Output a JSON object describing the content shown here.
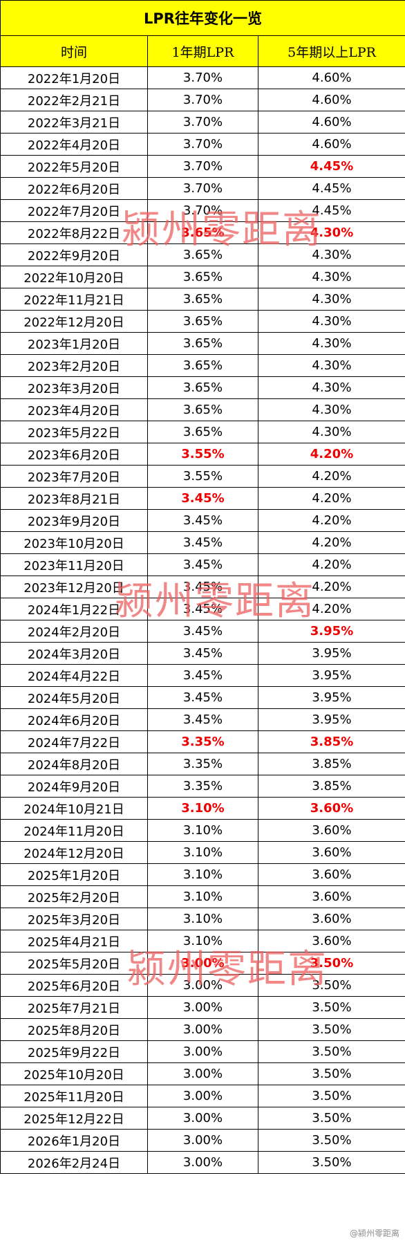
{
  "title": "LPR往年变化一览",
  "headers": [
    "时间",
    "1年期LPR",
    "5年期以上LPR"
  ],
  "rows": [
    {
      "date": "2022年1月20日",
      "lpr1y": "3.70%",
      "lpr5y": "4.60%",
      "changed1y": false,
      "changed5y": false
    },
    {
      "date": "2022年2月21日",
      "lpr1y": "3.70%",
      "lpr5y": "4.60%",
      "changed1y": false,
      "changed5y": false
    },
    {
      "date": "2022年3月21日",
      "lpr1y": "3.70%",
      "lpr5y": "4.60%",
      "changed1y": false,
      "changed5y": false
    },
    {
      "date": "2022年4月20日",
      "lpr1y": "3.70%",
      "lpr5y": "4.60%",
      "changed1y": false,
      "changed5y": false
    },
    {
      "date": "2022年5月20日",
      "lpr1y": "3.70%",
      "lpr5y": "4.45%",
      "changed1y": false,
      "changed5y": true
    },
    {
      "date": "2022年6月20日",
      "lpr1y": "3.70%",
      "lpr5y": "4.45%",
      "changed1y": false,
      "changed5y": false
    },
    {
      "date": "2022年7月20日",
      "lpr1y": "3.70%",
      "lpr5y": "4.45%",
      "changed1y": false,
      "changed5y": false
    },
    {
      "date": "2022年8月22日",
      "lpr1y": "3.65%",
      "lpr5y": "4.30%",
      "changed1y": true,
      "changed5y": true
    },
    {
      "date": "2022年9月20日",
      "lpr1y": "3.65%",
      "lpr5y": "4.30%",
      "changed1y": false,
      "changed5y": false
    },
    {
      "date": "2022年10月20日",
      "lpr1y": "3.65%",
      "lpr5y": "4.30%",
      "changed1y": false,
      "changed5y": false
    },
    {
      "date": "2022年11月21日",
      "lpr1y": "3.65%",
      "lpr5y": "4.30%",
      "changed1y": false,
      "changed5y": false
    },
    {
      "date": "2022年12月20日",
      "lpr1y": "3.65%",
      "lpr5y": "4.30%",
      "changed1y": false,
      "changed5y": false
    },
    {
      "date": "2023年1月20日",
      "lpr1y": "3.65%",
      "lpr5y": "4.30%",
      "changed1y": false,
      "changed5y": false
    },
    {
      "date": "2023年2月20日",
      "lpr1y": "3.65%",
      "lpr5y": "4.30%",
      "changed1y": false,
      "changed5y": false
    },
    {
      "date": "2023年3月20日",
      "lpr1y": "3.65%",
      "lpr5y": "4.30%",
      "changed1y": false,
      "changed5y": false
    },
    {
      "date": "2023年4月20日",
      "lpr1y": "3.65%",
      "lpr5y": "4.30%",
      "changed1y": false,
      "changed5y": false
    },
    {
      "date": "2023年5月22日",
      "lpr1y": "3.65%",
      "lpr5y": "4.30%",
      "changed1y": false,
      "changed5y": false
    },
    {
      "date": "2023年6月20日",
      "lpr1y": "3.55%",
      "lpr5y": "4.20%",
      "changed1y": true,
      "changed5y": true
    },
    {
      "date": "2023年7月20日",
      "lpr1y": "3.55%",
      "lpr5y": "4.20%",
      "changed1y": false,
      "changed5y": false
    },
    {
      "date": "2023年8月21日",
      "lpr1y": "3.45%",
      "lpr5y": "4.20%",
      "changed1y": true,
      "changed5y": false
    },
    {
      "date": "2023年9月20日",
      "lpr1y": "3.45%",
      "lpr5y": "4.20%",
      "changed1y": false,
      "changed5y": false
    },
    {
      "date": "2023年10月20日",
      "lpr1y": "3.45%",
      "lpr5y": "4.20%",
      "changed1y": false,
      "changed5y": false
    },
    {
      "date": "2023年11月20日",
      "lpr1y": "3.45%",
      "lpr5y": "4.20%",
      "changed1y": false,
      "changed5y": false
    },
    {
      "date": "2023年12月20日",
      "lpr1y": "3.45%",
      "lpr5y": "4.20%",
      "changed1y": false,
      "changed5y": false
    },
    {
      "date": "2024年1月22日",
      "lpr1y": "3.45%",
      "lpr5y": "4.20%",
      "changed1y": false,
      "changed5y": false
    },
    {
      "date": "2024年2月20日",
      "lpr1y": "3.45%",
      "lpr5y": "3.95%",
      "changed1y": false,
      "changed5y": true
    },
    {
      "date": "2024年3月20日",
      "lpr1y": "3.45%",
      "lpr5y": "3.95%",
      "changed1y": false,
      "changed5y": false
    },
    {
      "date": "2024年4月22日",
      "lpr1y": "3.45%",
      "lpr5y": "3.95%",
      "changed1y": false,
      "changed5y": false
    },
    {
      "date": "2024年5月20日",
      "lpr1y": "3.45%",
      "lpr5y": "3.95%",
      "changed1y": false,
      "changed5y": false
    },
    {
      "date": "2024年6月20日",
      "lpr1y": "3.45%",
      "lpr5y": "3.95%",
      "changed1y": false,
      "changed5y": false
    },
    {
      "date": "2024年7月22日",
      "lpr1y": "3.35%",
      "lpr5y": "3.85%",
      "changed1y": true,
      "changed5y": true
    },
    {
      "date": "2024年8月20日",
      "lpr1y": "3.35%",
      "lpr5y": "3.85%",
      "changed1y": false,
      "changed5y": false
    },
    {
      "date": "2024年9月20日",
      "lpr1y": "3.35%",
      "lpr5y": "3.85%",
      "changed1y": false,
      "changed5y": false
    },
    {
      "date": "2024年10月21日",
      "lpr1y": "3.10%",
      "lpr5y": "3.60%",
      "changed1y": true,
      "changed5y": true
    },
    {
      "date": "2024年11月20日",
      "lpr1y": "3.10%",
      "lpr5y": "3.60%",
      "changed1y": false,
      "changed5y": false
    },
    {
      "date": "2024年12月20日",
      "lpr1y": "3.10%",
      "lpr5y": "3.60%",
      "changed1y": false,
      "changed5y": false
    },
    {
      "date": "2025年1月20日",
      "lpr1y": "3.10%",
      "lpr5y": "3.60%",
      "changed1y": false,
      "changed5y": false
    },
    {
      "date": "2025年2月20日",
      "lpr1y": "3.10%",
      "lpr5y": "3.60%",
      "changed1y": false,
      "changed5y": false
    },
    {
      "date": "2025年3月20日",
      "lpr1y": "3.10%",
      "lpr5y": "3.60%",
      "changed1y": false,
      "changed5y": false
    },
    {
      "date": "2025年4月21日",
      "lpr1y": "3.10%",
      "lpr5y": "3.60%",
      "changed1y": false,
      "changed5y": false
    },
    {
      "date": "2025年5月20日",
      "lpr1y": "3.00%",
      "lpr5y": "3.50%",
      "changed1y": true,
      "changed5y": true
    },
    {
      "date": "2025年6月20日",
      "lpr1y": "3.00%",
      "lpr5y": "3.50%",
      "changed1y": false,
      "changed5y": false
    },
    {
      "date": "2025年7月21日",
      "lpr1y": "3.00%",
      "lpr5y": "3.50%",
      "changed1y": false,
      "changed5y": false
    },
    {
      "date": "2025年8月20日",
      "lpr1y": "3.00%",
      "lpr5y": "3.50%",
      "changed1y": false,
      "changed5y": false
    },
    {
      "date": "2025年9月22日",
      "lpr1y": "3.00%",
      "lpr5y": "3.50%",
      "changed1y": false,
      "changed5y": false
    },
    {
      "date": "2025年10月20日",
      "lpr1y": "3.00%",
      "lpr5y": "3.50%",
      "changed1y": false,
      "changed5y": false
    },
    {
      "date": "2025年11月20日",
      "lpr1y": "3.00%",
      "lpr5y": "3.50%",
      "changed1y": false,
      "changed5y": false
    },
    {
      "date": "2025年12月22日",
      "lpr1y": "3.00%",
      "lpr5y": "3.50%",
      "changed1y": false,
      "changed5y": false
    },
    {
      "date": "2026年1月20日",
      "lpr1y": "3.00%",
      "lpr5y": "3.50%",
      "changed1y": false,
      "changed5y": false
    },
    {
      "date": "2026年2月24日",
      "lpr1y": "3.00%",
      "lpr5y": "3.50%",
      "changed1y": false,
      "changed5y": false
    }
  ],
  "watermarks": [
    "颍州零距离",
    "颍州零距离",
    "颍州零距离"
  ],
  "credit": "@颍州零距离",
  "colors": {
    "header_bg": "#ffff00",
    "changed_text": "#ee0000",
    "watermark": "#ec5f5f"
  }
}
